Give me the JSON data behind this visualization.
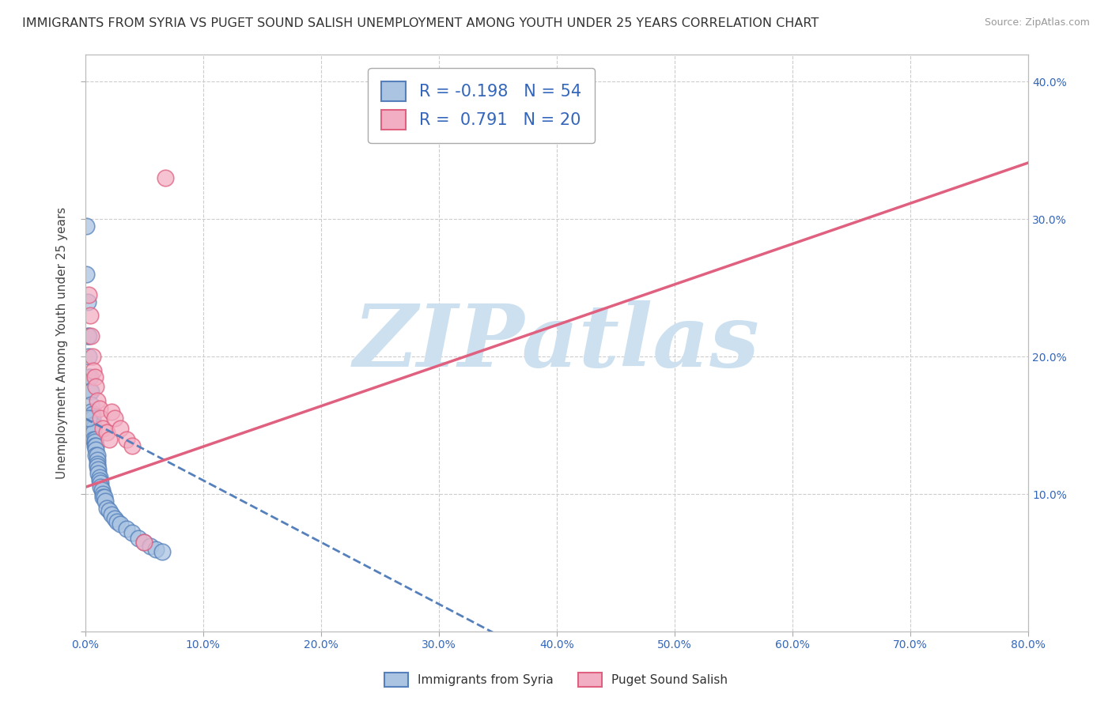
{
  "title": "IMMIGRANTS FROM SYRIA VS PUGET SOUND SALISH UNEMPLOYMENT AMONG YOUTH UNDER 25 YEARS CORRELATION CHART",
  "source": "Source: ZipAtlas.com",
  "ylabel": "Unemployment Among Youth under 25 years",
  "xlim": [
    0.0,
    0.8
  ],
  "ylim": [
    0.0,
    0.42
  ],
  "xticks": [
    0.0,
    0.1,
    0.2,
    0.3,
    0.4,
    0.5,
    0.6,
    0.7,
    0.8
  ],
  "xticklabels": [
    "0.0%",
    "10.0%",
    "20.0%",
    "30.0%",
    "40.0%",
    "50.0%",
    "60.0%",
    "70.0%",
    "80.0%"
  ],
  "yticks": [
    0.0,
    0.1,
    0.2,
    0.3,
    0.4
  ],
  "right_yticklabels": [
    "",
    "10.0%",
    "20.0%",
    "30.0%",
    "40.0%"
  ],
  "series1_color": "#aac4e2",
  "series2_color": "#f2afc4",
  "trendline1_color": "#5580bb",
  "trendline2_color": "#e06080",
  "background_color": "#ffffff",
  "grid_color": "#cccccc",
  "watermark": "ZIPatlas",
  "watermark_color": "#cce0f0",
  "series1_r": -0.198,
  "series1_n": 54,
  "series2_r": 0.791,
  "series2_n": 20,
  "legend1_label": "R = -0.198   N = 54",
  "legend2_label": "R =  0.791   N = 20",
  "bottom_legend1": "Immigrants from Syria",
  "bottom_legend2": "Puget Sound Salish",
  "blue_slope": -0.45,
  "blue_intercept": 0.155,
  "pink_slope": 0.295,
  "pink_intercept": 0.105,
  "blue_x": [
    0.001,
    0.001,
    0.002,
    0.002,
    0.003,
    0.003,
    0.003,
    0.004,
    0.004,
    0.005,
    0.005,
    0.005,
    0.006,
    0.006,
    0.006,
    0.007,
    0.007,
    0.007,
    0.007,
    0.008,
    0.008,
    0.008,
    0.009,
    0.009,
    0.009,
    0.01,
    0.01,
    0.01,
    0.01,
    0.011,
    0.011,
    0.012,
    0.012,
    0.013,
    0.013,
    0.014,
    0.015,
    0.015,
    0.016,
    0.017,
    0.018,
    0.02,
    0.022,
    0.025,
    0.027,
    0.03,
    0.035,
    0.04,
    0.045,
    0.05,
    0.055,
    0.06,
    0.065,
    0.003
  ],
  "blue_y": [
    0.295,
    0.26,
    0.24,
    0.215,
    0.215,
    0.2,
    0.185,
    0.185,
    0.175,
    0.175,
    0.165,
    0.16,
    0.158,
    0.155,
    0.15,
    0.15,
    0.148,
    0.145,
    0.14,
    0.14,
    0.138,
    0.135,
    0.135,
    0.132,
    0.128,
    0.128,
    0.125,
    0.122,
    0.12,
    0.118,
    0.115,
    0.112,
    0.11,
    0.108,
    0.105,
    0.103,
    0.1,
    0.098,
    0.098,
    0.095,
    0.09,
    0.088,
    0.085,
    0.082,
    0.08,
    0.078,
    0.075,
    0.072,
    0.068,
    0.065,
    0.062,
    0.06,
    0.058,
    0.155
  ],
  "pink_x": [
    0.003,
    0.004,
    0.005,
    0.006,
    0.007,
    0.008,
    0.009,
    0.01,
    0.012,
    0.013,
    0.015,
    0.018,
    0.02,
    0.022,
    0.025,
    0.03,
    0.035,
    0.04,
    0.05,
    0.068
  ],
  "pink_y": [
    0.245,
    0.23,
    0.215,
    0.2,
    0.19,
    0.185,
    0.178,
    0.168,
    0.162,
    0.155,
    0.148,
    0.145,
    0.14,
    0.16,
    0.155,
    0.148,
    0.14,
    0.135,
    0.065,
    0.33
  ]
}
